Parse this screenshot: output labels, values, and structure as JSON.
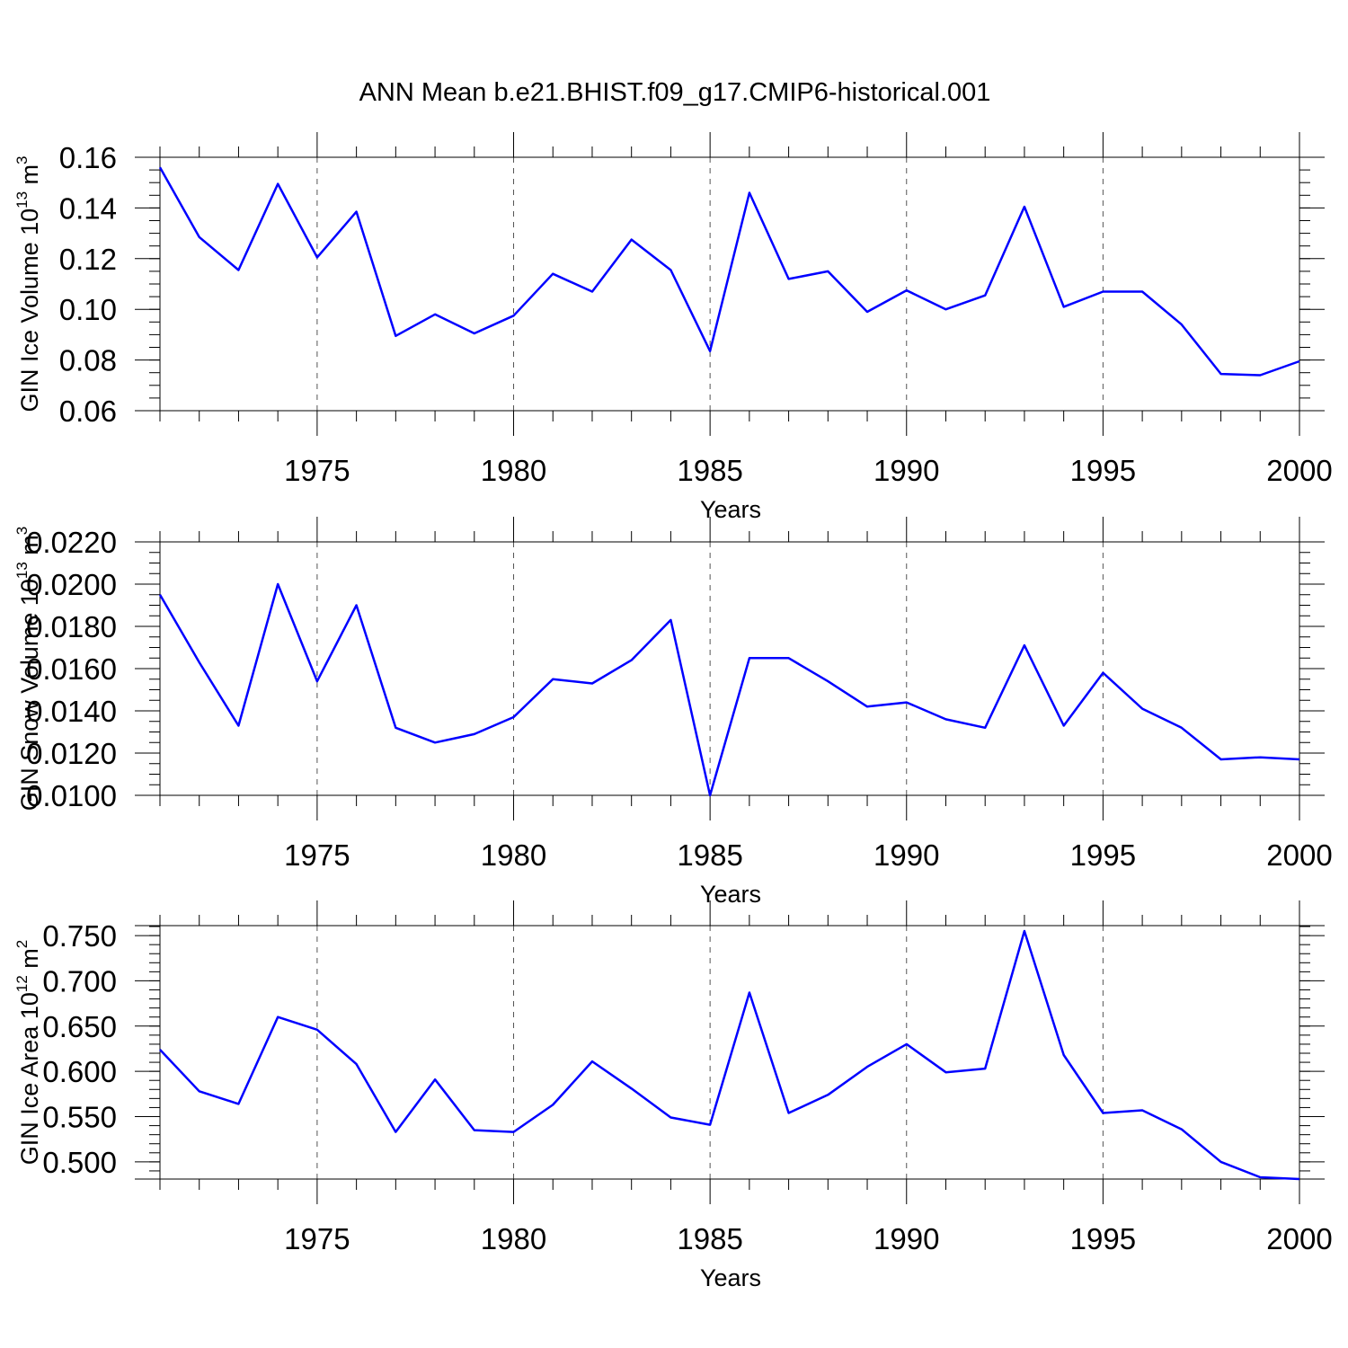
{
  "title": "ANN Mean b.e21.BHIST.f09_g17.CMIP6-historical.001",
  "colors": {
    "line": "#0000ff",
    "grid": "#555555",
    "axis": "#000000"
  },
  "chart_data": [
    {
      "type": "line",
      "ylabel": {
        "main": "GIN Ice Volume 10",
        "exp": "13",
        "unit": " m",
        "unit_exp": "3"
      },
      "xlabel": "Years",
      "xlim": [
        1971,
        2000
      ],
      "ylim": [
        0.06,
        0.16
      ],
      "x_major_ticks": [
        1975,
        1980,
        1985,
        1990,
        1995,
        2000
      ],
      "y_ticks": [
        0.06,
        0.08,
        0.1,
        0.12,
        0.14,
        0.16
      ],
      "y_tick_labels": [
        "0.06",
        "0.08",
        "0.10",
        "0.12",
        "0.14",
        "0.16"
      ],
      "y_minor_step": 0.005,
      "x": [
        1971,
        1972,
        1973,
        1974,
        1975,
        1976,
        1977,
        1978,
        1979,
        1980,
        1981,
        1982,
        1983,
        1984,
        1985,
        1986,
        1987,
        1988,
        1989,
        1990,
        1991,
        1992,
        1993,
        1994,
        1995,
        1996,
        1997,
        1998,
        1999,
        2000
      ],
      "values": [
        0.156,
        0.1285,
        0.1155,
        0.1495,
        0.1205,
        0.1385,
        0.0895,
        0.098,
        0.0905,
        0.0975,
        0.114,
        0.107,
        0.1275,
        0.1155,
        0.0835,
        0.146,
        0.112,
        0.115,
        0.099,
        0.1075,
        0.1,
        0.1055,
        0.1405,
        0.101,
        0.107,
        0.107,
        0.094,
        0.0745,
        0.074,
        0.0795
      ],
      "grid": "vertical-dashed"
    },
    {
      "type": "line",
      "ylabel": {
        "main": "GIN Snow Volume 10",
        "exp": "13",
        "unit": " m",
        "unit_exp": "3"
      },
      "xlabel": "Years",
      "xlim": [
        1971,
        2000
      ],
      "ylim": [
        0.01,
        0.022
      ],
      "x_major_ticks": [
        1975,
        1980,
        1985,
        1990,
        1995,
        2000
      ],
      "y_ticks": [
        0.01,
        0.012,
        0.014,
        0.016,
        0.018,
        0.02,
        0.022
      ],
      "y_tick_labels": [
        "0.0100",
        "0.0120",
        "0.0140",
        "0.0160",
        "0.0180",
        "0.0200",
        "0.0220"
      ],
      "y_minor_step": 0.0005,
      "x": [
        1971,
        1972,
        1973,
        1974,
        1975,
        1976,
        1977,
        1978,
        1979,
        1980,
        1981,
        1982,
        1983,
        1984,
        1985,
        1986,
        1987,
        1988,
        1989,
        1990,
        1991,
        1992,
        1993,
        1994,
        1995,
        1996,
        1997,
        1998,
        1999,
        2000
      ],
      "values": [
        0.0195,
        0.0163,
        0.0133,
        0.02,
        0.0154,
        0.019,
        0.0132,
        0.0125,
        0.0129,
        0.0137,
        0.0155,
        0.0153,
        0.0164,
        0.0183,
        0.01,
        0.0165,
        0.0165,
        0.0154,
        0.0142,
        0.0144,
        0.0136,
        0.0132,
        0.0171,
        0.0133,
        0.0158,
        0.0141,
        0.0132,
        0.0117,
        0.0118,
        0.0117
      ],
      "grid": "vertical-dashed"
    },
    {
      "type": "line",
      "ylabel": {
        "main": "GIN Ice Area 10",
        "exp": "12",
        "unit": " m",
        "unit_exp": "2"
      },
      "xlabel": "Years",
      "xlim": [
        1971,
        2000
      ],
      "ylim": [
        0.481,
        0.761
      ],
      "x_major_ticks": [
        1975,
        1980,
        1985,
        1990,
        1995,
        2000
      ],
      "y_ticks": [
        0.5,
        0.55,
        0.6,
        0.65,
        0.7,
        0.75
      ],
      "y_tick_labels": [
        "0.500",
        "0.550",
        "0.600",
        "0.650",
        "0.700",
        "0.750"
      ],
      "y_minor_step": 0.01,
      "x": [
        1971,
        1972,
        1973,
        1974,
        1975,
        1976,
        1977,
        1978,
        1979,
        1980,
        1981,
        1982,
        1983,
        1984,
        1985,
        1986,
        1987,
        1988,
        1989,
        1990,
        1991,
        1992,
        1993,
        1994,
        1995,
        1996,
        1997,
        1998,
        1999,
        2000
      ],
      "values": [
        0.624,
        0.578,
        0.564,
        0.66,
        0.646,
        0.608,
        0.533,
        0.591,
        0.535,
        0.533,
        0.563,
        0.611,
        0.581,
        0.549,
        0.541,
        0.687,
        0.554,
        0.574,
        0.605,
        0.63,
        0.599,
        0.603,
        0.755,
        0.618,
        0.554,
        0.557,
        0.536,
        0.5,
        0.483,
        0.481
      ],
      "grid": "vertical-dashed"
    }
  ]
}
